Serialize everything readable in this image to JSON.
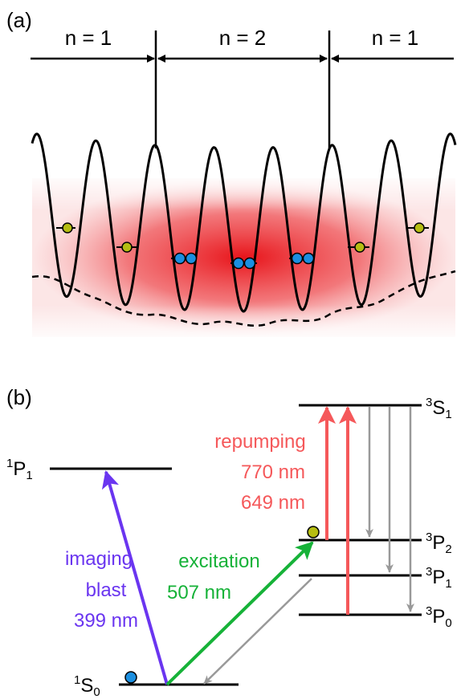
{
  "panel_a": {
    "label": "(a)",
    "regions": [
      {
        "text": "n = 1"
      },
      {
        "text": "n = 2"
      },
      {
        "text": "n = 1"
      }
    ],
    "colors": {
      "glow": "#e8141a",
      "atom_single": "#b5bd12",
      "atom_pair": "#1b8fe0"
    }
  },
  "panel_b": {
    "label": "(b)",
    "levels": {
      "S1_3": {
        "sup": "3",
        "main": "S",
        "sub": "1"
      },
      "P1_1": {
        "sup": "1",
        "main": "P",
        "sub": "1"
      },
      "P2_3": {
        "sup": "3",
        "main": "P",
        "sub": "2"
      },
      "P1_3": {
        "sup": "3",
        "main": "P",
        "sub": "1"
      },
      "P0_3": {
        "sup": "3",
        "main": "P",
        "sub": "0"
      },
      "S0_1": {
        "sup": "1",
        "main": "S",
        "sub": "0"
      }
    },
    "imaging": {
      "line1": "imaging",
      "line2": "blast",
      "line3": "399 nm",
      "color": "#6a35f0"
    },
    "excitation": {
      "line1": "excitation",
      "line2": "507 nm",
      "color": "#16b238"
    },
    "repumping": {
      "line1": "repumping",
      "line2": "770 nm",
      "line3": "649 nm",
      "color": "#f5585a"
    },
    "decay_color": "#999999"
  }
}
